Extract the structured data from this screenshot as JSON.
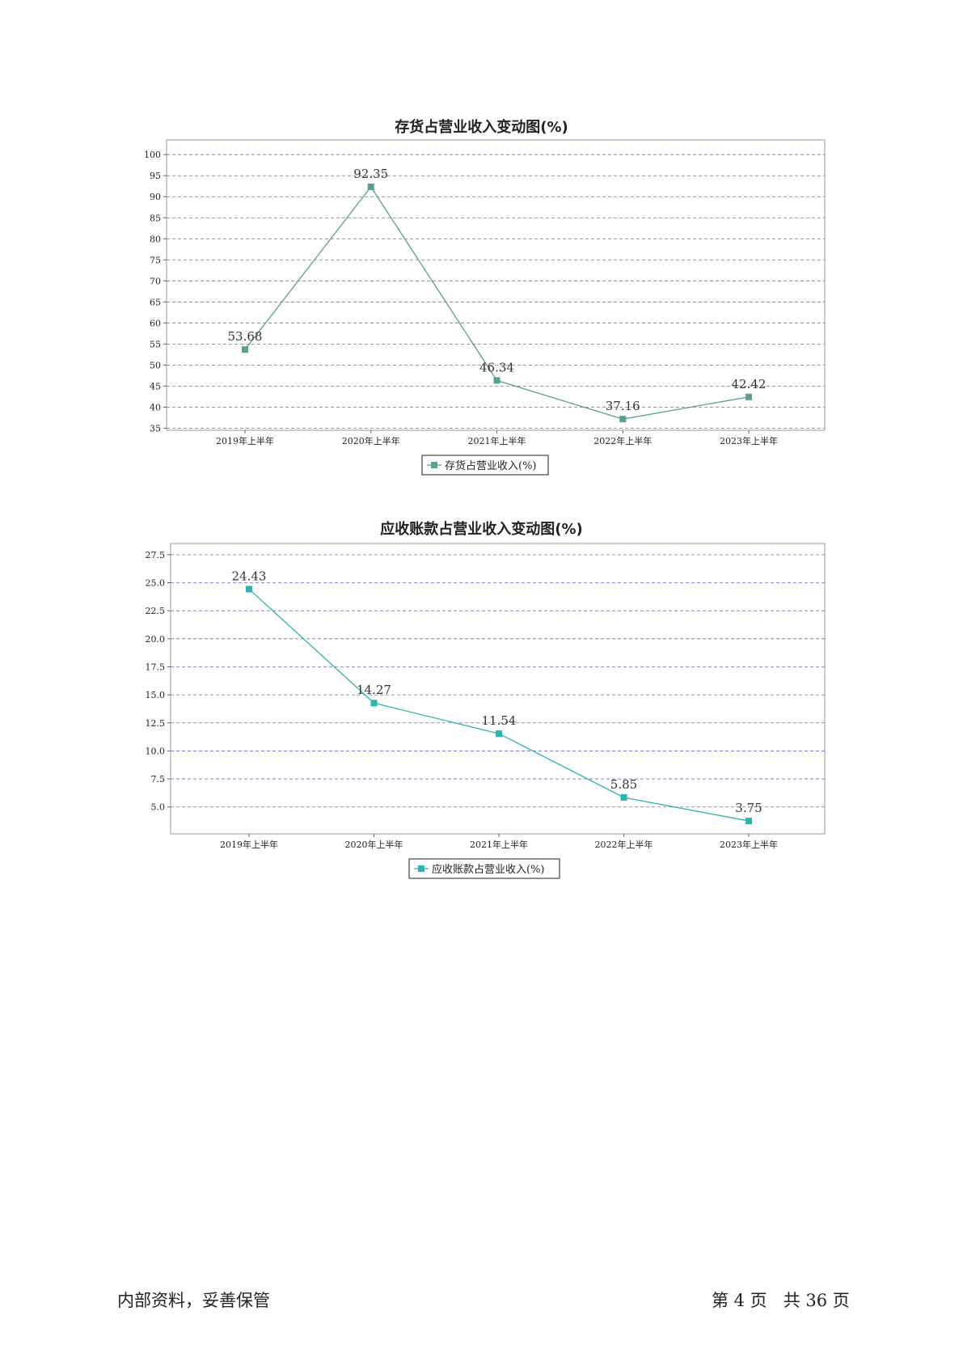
{
  "charts": {
    "inventory": {
      "type": "line",
      "title": "存货占营业收入变动图(%)",
      "categories": [
        "2019年上半年",
        "2020年上半年",
        "2021年上半年",
        "2022年上半年",
        "2023年上半年"
      ],
      "series": [
        {
          "name": "存货占营业收入(%)",
          "values": [
            53.68,
            92.35,
            46.34,
            37.16,
            42.42
          ],
          "labels": [
            "53.68",
            "92.35",
            "46.34",
            "37.16",
            "42.42"
          ],
          "color": "#5b9e96"
        }
      ],
      "yticks": [
        "35",
        "40",
        "45",
        "50",
        "55",
        "60",
        "65",
        "70",
        "75",
        "80",
        "85",
        "90",
        "95",
        "100"
      ],
      "ylim": [
        34.5,
        103.5
      ],
      "grid": true,
      "grid_color": "#6666dd",
      "legend": "bottom-center"
    },
    "receivable": {
      "type": "line",
      "title": "应收账款占营业收入变动图(%)",
      "categories": [
        "2019年上半年",
        "2020年上半年",
        "2021年上半年",
        "2022年上半年",
        "2023年上半年"
      ],
      "series": [
        {
          "name": "应收账款占营业收入(%)",
          "values": [
            24.43,
            14.27,
            11.54,
            5.85,
            3.75
          ],
          "labels": [
            "24.43",
            "14.27",
            "11.54",
            "5.85",
            "3.75"
          ],
          "color": "#2bb5b0"
        }
      ],
      "yticks": [
        "5.0",
        "7.5",
        "10.0",
        "12.5",
        "15.0",
        "17.5",
        "20.0",
        "22.5",
        "25.0",
        "27.5"
      ],
      "ylim": [
        2.6,
        28.5
      ],
      "grid": true,
      "grid_color": "#6666dd",
      "legend": "bottom-center"
    }
  },
  "chart_data": [
    {
      "type": "line",
      "title": "存货占营业收入变动图(%)",
      "categories": [
        "2019年上半年",
        "2020年上半年",
        "2021年上半年",
        "2022年上半年",
        "2023年上半年"
      ],
      "series": [
        {
          "name": "存货占营业收入(%)",
          "values": [
            53.68,
            92.35,
            46.34,
            37.16,
            42.42
          ]
        }
      ],
      "ylim": [
        35,
        100
      ]
    },
    {
      "type": "line",
      "title": "应收账款占营业收入变动图(%)",
      "categories": [
        "2019年上半年",
        "2020年上半年",
        "2021年上半年",
        "2022年上半年",
        "2023年上半年"
      ],
      "series": [
        {
          "name": "应收账款占营业收入(%)",
          "values": [
            24.43,
            14.27,
            11.54,
            5.85,
            3.75
          ]
        }
      ],
      "ylim": [
        5.0,
        27.5
      ]
    }
  ],
  "footer": {
    "left": "内部资料，妥善保管",
    "right": "第 4 页   共 36 页"
  }
}
